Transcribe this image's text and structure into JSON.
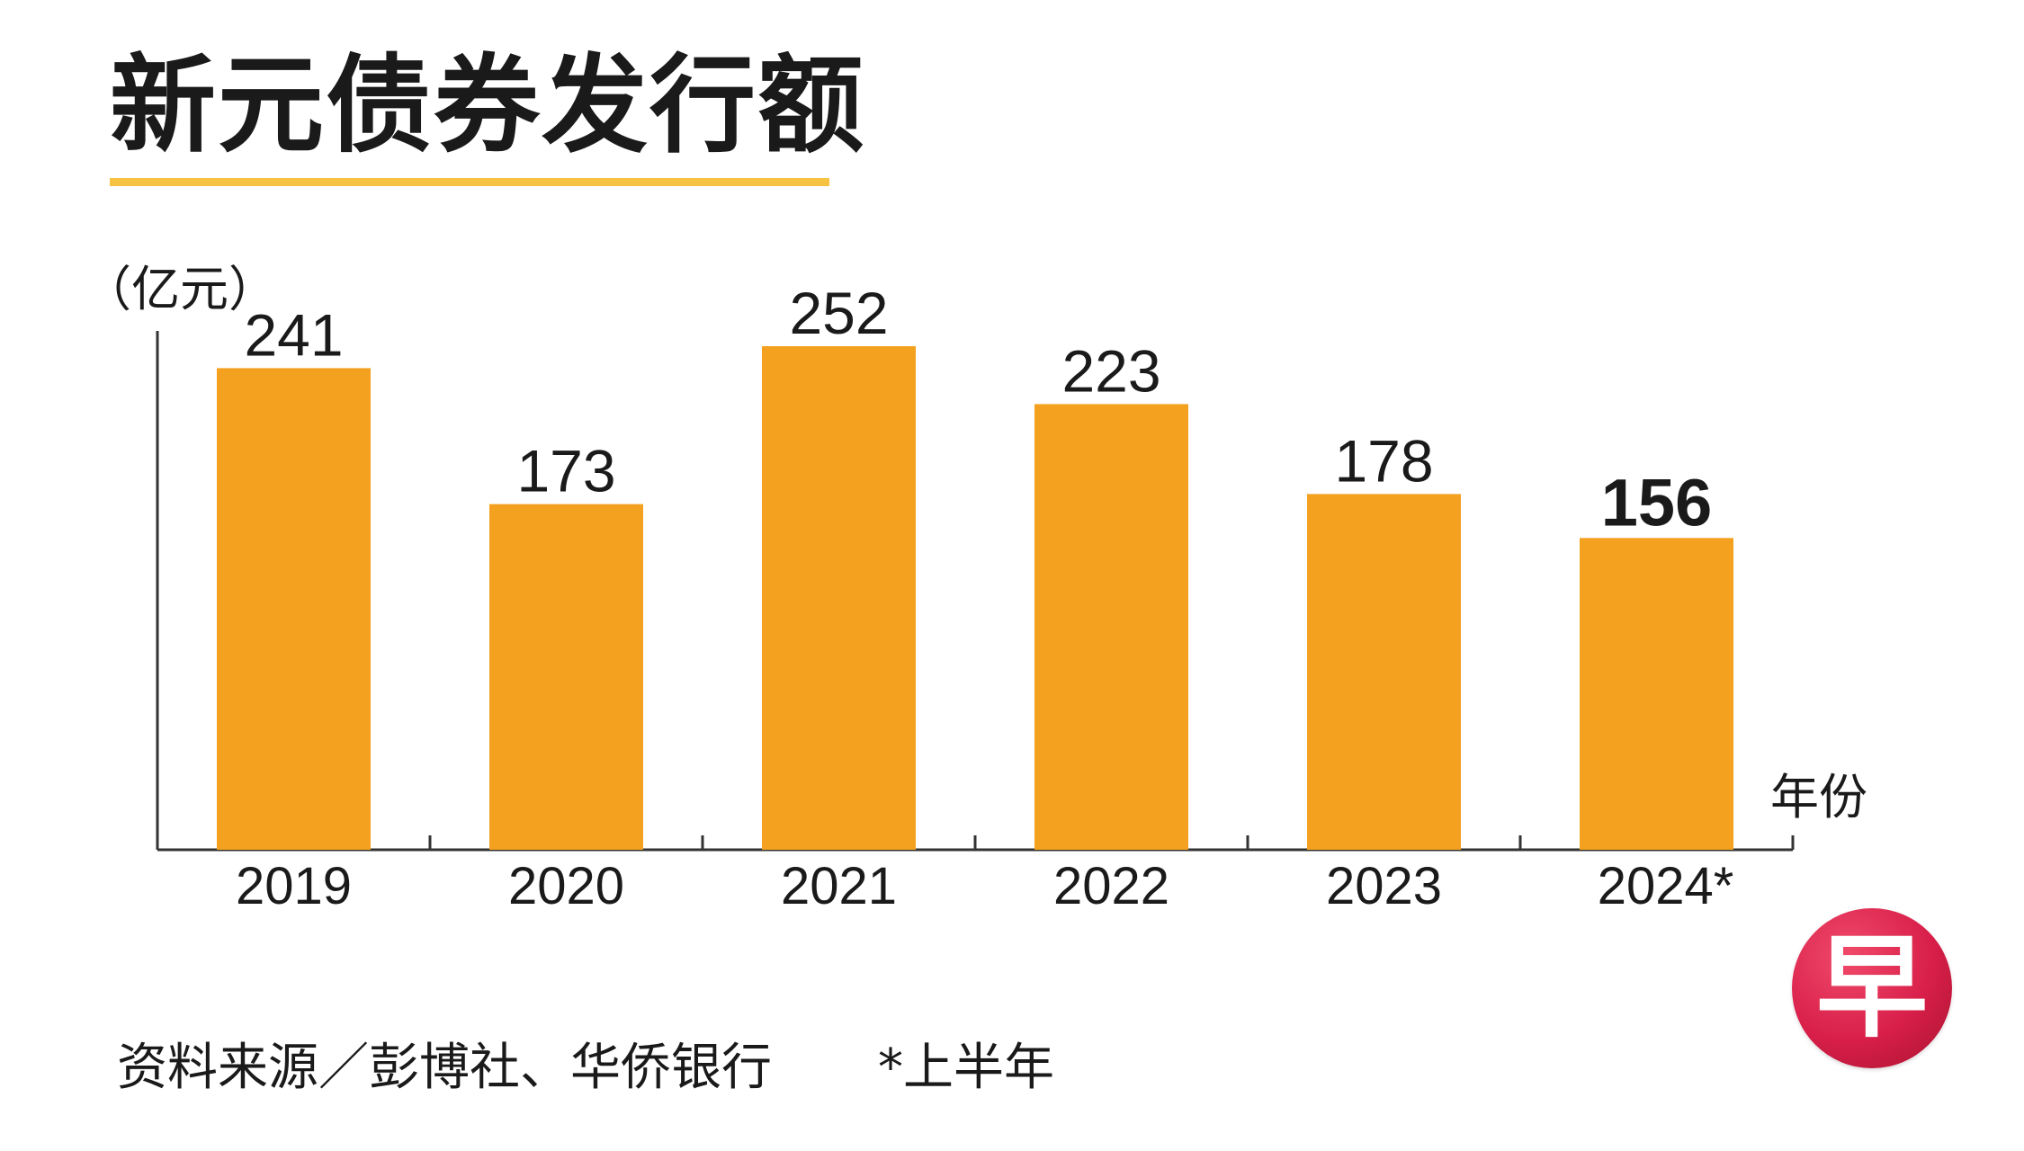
{
  "title": "新元债券发行额",
  "unit_label": "（亿元）",
  "x_unit_label": "年份",
  "source": "资料来源／彭博社、华侨银行",
  "footnote": "*上半年",
  "logo_char": "早",
  "colors": {
    "bar": "#f4a11f",
    "accent_underline": "#f5c242",
    "axis": "#333333",
    "logo": "#d81f4a"
  },
  "chart_data": {
    "type": "bar",
    "title": "新元债券发行额",
    "ylabel": "（亿元）",
    "xlabel": "年份",
    "categories": [
      "2019",
      "2020",
      "2021",
      "2022",
      "2023",
      "2024*"
    ],
    "values": [
      241,
      173,
      252,
      223,
      178,
      156
    ],
    "data_labels": [
      "241",
      "173",
      "252",
      "223",
      "178",
      "156"
    ],
    "highlight": [
      "2024*"
    ],
    "ylim": [
      0,
      252
    ],
    "grid": false,
    "legend": "none"
  }
}
